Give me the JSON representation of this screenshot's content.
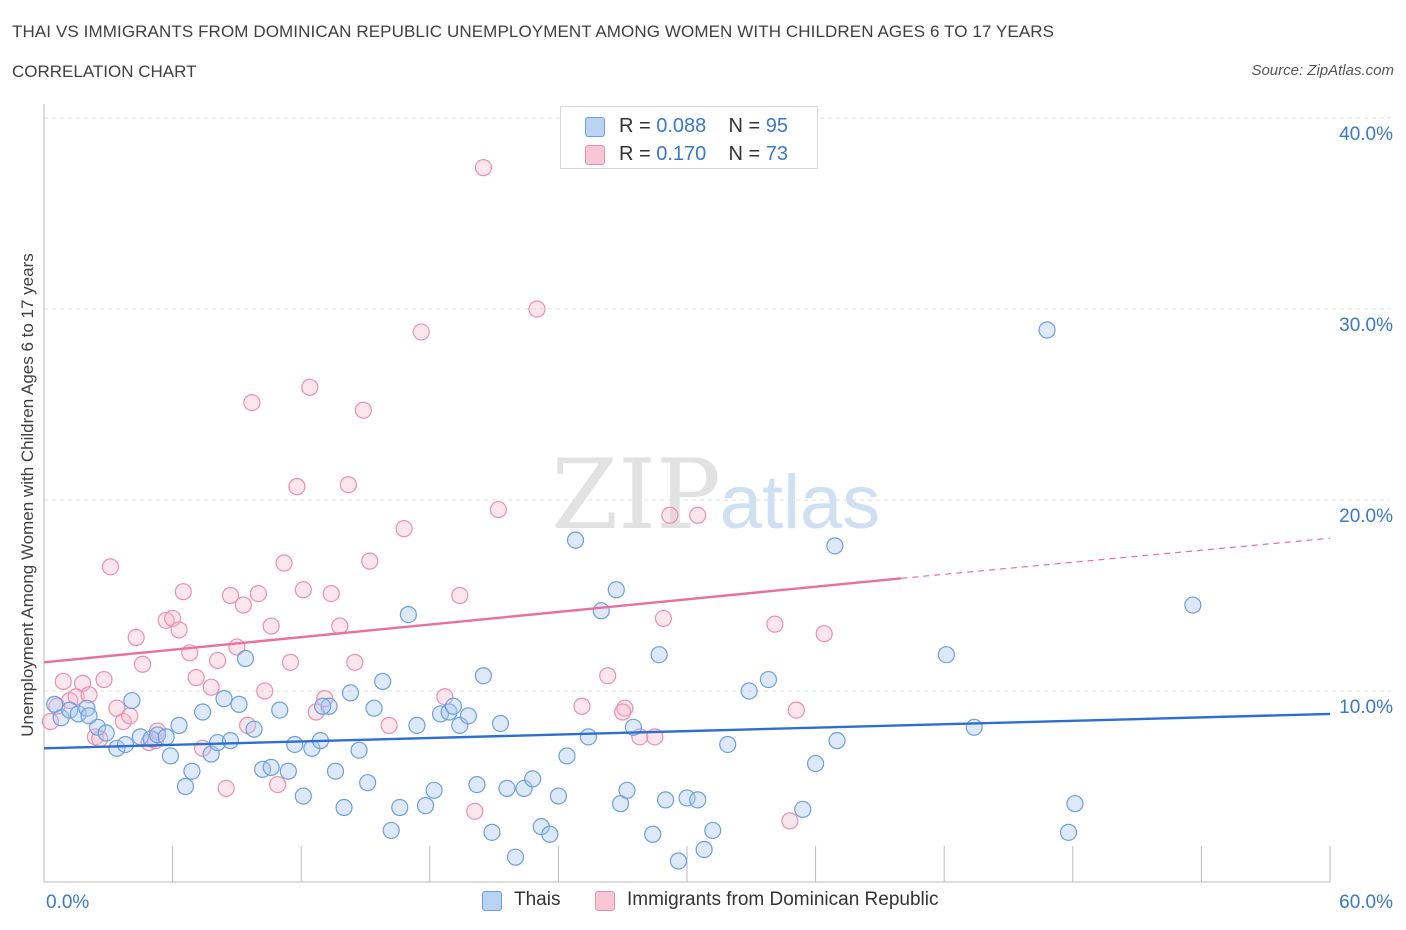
{
  "title": "THAI VS IMMIGRANTS FROM DOMINICAN REPUBLIC UNEMPLOYMENT AMONG WOMEN WITH CHILDREN AGES 6 TO 17 YEARS",
  "subtitle": "CORRELATION CHART",
  "source": "Source: ZipAtlas.com",
  "watermark": {
    "zip": "ZIP",
    "atlas": "atlas"
  },
  "colors": {
    "thais_fill": "#a9c8f0",
    "thais_stroke": "#6d9fdd",
    "thais_line": "#2e6fce",
    "dominican_fill": "#f7b8cc",
    "dominican_stroke": "#ec8fae",
    "dominican_line": "#e8709a",
    "axis_label": "#3a78c8",
    "grid": "#dddddd"
  },
  "stats": {
    "rows": [
      {
        "r_label": "R =",
        "r_value": "0.088",
        "n_label": "N =",
        "n_value": "95"
      },
      {
        "r_label": "R =",
        "r_value": "0.170",
        "n_label": "N =",
        "n_value": "73"
      }
    ]
  },
  "chart_data": {
    "type": "scatter",
    "title": "THAI VS IMMIGRANTS FROM DOMINICAN REPUBLIC UNEMPLOYMENT AMONG WOMEN WITH CHILDREN AGES 6 TO 17 YEARS",
    "xlabel": "",
    "ylabel": "Unemployment Among Women with Children Ages 6 to 17 years",
    "xlim": [
      0,
      60
    ],
    "ylim": [
      0,
      40
    ],
    "x_tick_labels": [
      "0.0%",
      "60.0%"
    ],
    "y_ticks": [
      10,
      20,
      30,
      40
    ],
    "y_tick_labels": [
      "10.0%",
      "20.0%",
      "30.0%",
      "40.0%"
    ],
    "grid": true,
    "legend_position": "bottom-center",
    "series": [
      {
        "name": "Thais",
        "trend": {
          "x": [
            0,
            60
          ],
          "y": [
            7.0,
            8.8
          ]
        },
        "points": [
          [
            0.5,
            9.3
          ],
          [
            0.8,
            8.6
          ],
          [
            1.2,
            9.0
          ],
          [
            1.6,
            8.8
          ],
          [
            2.0,
            9.1
          ],
          [
            2.5,
            8.1
          ],
          [
            2.9,
            7.8
          ],
          [
            3.4,
            7.0
          ],
          [
            3.8,
            7.2
          ],
          [
            4.1,
            9.5
          ],
          [
            4.5,
            7.6
          ],
          [
            5.0,
            7.5
          ],
          [
            5.3,
            7.7
          ],
          [
            5.9,
            6.6
          ],
          [
            6.3,
            8.2
          ],
          [
            6.6,
            5.0
          ],
          [
            6.9,
            5.8
          ],
          [
            7.4,
            8.9
          ],
          [
            7.8,
            6.7
          ],
          [
            8.1,
            7.3
          ],
          [
            8.4,
            9.6
          ],
          [
            8.7,
            7.4
          ],
          [
            9.1,
            9.3
          ],
          [
            9.4,
            11.7
          ],
          [
            9.8,
            8.0
          ],
          [
            10.2,
            5.9
          ],
          [
            10.6,
            6.0
          ],
          [
            11.0,
            9.0
          ],
          [
            11.4,
            5.8
          ],
          [
            11.7,
            7.2
          ],
          [
            12.1,
            4.5
          ],
          [
            12.5,
            7.0
          ],
          [
            12.9,
            7.4
          ],
          [
            13.3,
            9.2
          ],
          [
            13.6,
            5.8
          ],
          [
            14.0,
            3.9
          ],
          [
            14.3,
            9.9
          ],
          [
            14.7,
            6.9
          ],
          [
            15.1,
            5.2
          ],
          [
            15.4,
            9.1
          ],
          [
            15.8,
            10.5
          ],
          [
            16.2,
            2.7
          ],
          [
            16.6,
            3.9
          ],
          [
            17.0,
            14.0
          ],
          [
            17.4,
            8.2
          ],
          [
            17.8,
            4.0
          ],
          [
            18.2,
            4.8
          ],
          [
            18.5,
            8.8
          ],
          [
            18.9,
            8.9
          ],
          [
            19.4,
            8.2
          ],
          [
            19.8,
            8.7
          ],
          [
            20.2,
            5.1
          ],
          [
            20.5,
            10.8
          ],
          [
            20.9,
            2.6
          ],
          [
            21.3,
            8.3
          ],
          [
            21.6,
            4.9
          ],
          [
            22.0,
            1.3
          ],
          [
            22.4,
            4.9
          ],
          [
            22.8,
            5.4
          ],
          [
            23.2,
            2.9
          ],
          [
            23.6,
            2.5
          ],
          [
            24.0,
            4.5
          ],
          [
            24.4,
            6.6
          ],
          [
            24.8,
            17.9
          ],
          [
            25.4,
            7.6
          ],
          [
            26.0,
            14.2
          ],
          [
            26.7,
            15.3
          ],
          [
            26.9,
            4.1
          ],
          [
            27.2,
            4.8
          ],
          [
            27.5,
            8.1
          ],
          [
            28.4,
            2.5
          ],
          [
            28.7,
            11.9
          ],
          [
            29.0,
            4.3
          ],
          [
            29.6,
            1.1
          ],
          [
            30.0,
            4.4
          ],
          [
            30.5,
            4.3
          ],
          [
            30.8,
            1.7
          ],
          [
            31.2,
            2.7
          ],
          [
            31.9,
            7.2
          ],
          [
            32.9,
            10.0
          ],
          [
            33.8,
            10.6
          ],
          [
            35.4,
            3.8
          ],
          [
            36.0,
            6.2
          ],
          [
            37.0,
            7.4
          ],
          [
            36.9,
            17.6
          ],
          [
            42.1,
            11.9
          ],
          [
            43.4,
            8.1
          ],
          [
            46.8,
            28.9
          ],
          [
            47.8,
            2.6
          ],
          [
            48.1,
            4.1
          ],
          [
            53.6,
            14.5
          ],
          [
            5.7,
            7.6
          ],
          [
            2.1,
            8.7
          ],
          [
            13.0,
            9.2
          ],
          [
            19.1,
            9.2
          ]
        ]
      },
      {
        "name": "Immigrants from Dominican Republic",
        "trend": {
          "x": [
            0,
            40
          ],
          "y": [
            11.5,
            15.9
          ]
        },
        "trend_dashed": {
          "x": [
            40,
            60
          ],
          "y": [
            15.9,
            18.0
          ]
        },
        "points": [
          [
            0.3,
            8.4
          ],
          [
            0.6,
            9.2
          ],
          [
            0.9,
            10.5
          ],
          [
            1.2,
            9.5
          ],
          [
            1.5,
            9.7
          ],
          [
            1.8,
            10.4
          ],
          [
            2.1,
            9.8
          ],
          [
            2.4,
            7.6
          ],
          [
            2.8,
            10.6
          ],
          [
            3.1,
            16.5
          ],
          [
            3.4,
            9.1
          ],
          [
            3.7,
            8.4
          ],
          [
            4.0,
            8.7
          ],
          [
            4.3,
            12.8
          ],
          [
            4.6,
            11.4
          ],
          [
            4.9,
            7.3
          ],
          [
            5.3,
            7.9
          ],
          [
            5.7,
            13.7
          ],
          [
            6.0,
            13.8
          ],
          [
            6.3,
            13.2
          ],
          [
            6.5,
            15.2
          ],
          [
            6.8,
            12.0
          ],
          [
            7.1,
            10.7
          ],
          [
            7.4,
            7.0
          ],
          [
            7.8,
            10.2
          ],
          [
            8.1,
            11.6
          ],
          [
            8.5,
            4.9
          ],
          [
            8.7,
            15.0
          ],
          [
            9.0,
            12.3
          ],
          [
            9.3,
            14.5
          ],
          [
            9.7,
            25.1
          ],
          [
            10.0,
            15.1
          ],
          [
            10.3,
            10.0
          ],
          [
            10.6,
            13.4
          ],
          [
            10.9,
            5.1
          ],
          [
            11.2,
            16.7
          ],
          [
            11.5,
            11.5
          ],
          [
            11.8,
            20.7
          ],
          [
            12.1,
            15.3
          ],
          [
            12.4,
            25.9
          ],
          [
            12.7,
            8.9
          ],
          [
            13.1,
            9.6
          ],
          [
            13.4,
            15.1
          ],
          [
            13.8,
            13.4
          ],
          [
            14.2,
            20.8
          ],
          [
            14.5,
            11.5
          ],
          [
            14.9,
            24.7
          ],
          [
            15.2,
            16.8
          ],
          [
            16.1,
            8.2
          ],
          [
            16.8,
            18.5
          ],
          [
            17.6,
            28.8
          ],
          [
            18.7,
            9.7
          ],
          [
            19.4,
            15.0
          ],
          [
            20.1,
            3.7
          ],
          [
            20.5,
            37.4
          ],
          [
            21.2,
            19.5
          ],
          [
            23.0,
            30.0
          ],
          [
            25.1,
            9.2
          ],
          [
            26.3,
            10.8
          ],
          [
            27.1,
            9.1
          ],
          [
            27.8,
            7.6
          ],
          [
            28.5,
            7.6
          ],
          [
            28.9,
            13.8
          ],
          [
            29.2,
            19.2
          ],
          [
            30.5,
            19.2
          ],
          [
            34.1,
            13.5
          ],
          [
            34.8,
            3.2
          ],
          [
            35.1,
            9.0
          ],
          [
            36.4,
            13.0
          ],
          [
            27.0,
            8.9
          ],
          [
            9.5,
            8.2
          ],
          [
            5.2,
            7.4
          ],
          [
            2.6,
            7.5
          ]
        ]
      }
    ]
  },
  "legend": {
    "items": [
      "Thais",
      "Immigrants from Dominican Republic"
    ]
  }
}
